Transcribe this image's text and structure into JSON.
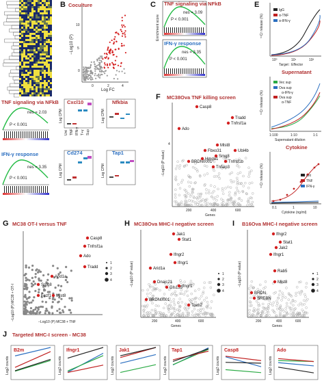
{
  "figure": {
    "panels": {
      "B": {
        "letter": "B",
        "title": "Coculture",
        "ylabel": "−Log10 (P)",
        "xlabel": "Log FC",
        "yticks": [
          "0",
          "5",
          "10"
        ],
        "xticks": [
          "0",
          "2",
          "4"
        ]
      },
      "C": {
        "letter": "C",
        "gsea1_title": "TNF signaling via NFkB",
        "gsea1_nes": "nes = 3.09",
        "gsea1_p": "P < 0.001",
        "gsea2_title": "IFN-γ response",
        "gsea2_nes": "nes = 3.35",
        "gsea2_p": "P < 0.001",
        "ylabel": "Enrichment score"
      },
      "E": {
        "letter": "E",
        "legend": [
          "IgG",
          "α-TNF",
          "α-IFN-γ"
        ],
        "xlabel": "Target : Effector",
        "ylabel": "⁵¹Cr release (%)",
        "xticks": [
          "10⁰",
          "10¹",
          "10²"
        ],
        "yticks": [
          "0",
          "25",
          "50",
          "75",
          "100"
        ]
      },
      "supernatant": {
        "title": "Supernatant",
        "legend": [
          "Vec sup",
          "Ova sup",
          "α-IFN-γ",
          "Ova sup",
          "α-TNF"
        ],
        "xlabel": "Supernatant dilution",
        "ylabel": "⁵¹Cr release (%)",
        "xticks": [
          "1:100",
          "1:10",
          "1:1"
        ],
        "yticks": [
          "0",
          "25",
          "50",
          "75"
        ]
      },
      "cytokine": {
        "title": "Cytokine",
        "legend": [
          "unt",
          "TNF",
          "IFN-γ"
        ],
        "xlabel": "Cytokine (ng/ml)",
        "ylabel": "⁵¹Cr release (%)",
        "xticks": [
          "0.1",
          "1",
          "10"
        ],
        "yticks": [
          "0",
          "25",
          "50",
          "75",
          "100"
        ]
      },
      "A_left": {
        "gsea1_title": "TNF signaling via NFkB",
        "gsea1_nes": "nes = 2.03",
        "gsea1_p": "P < 0.001",
        "gsea2_title": "IFN-γ response",
        "gsea2_nes": "nes = 3.35",
        "gsea2_p": "P < 0.001"
      },
      "D": {
        "genes": [
          "Cxcl10",
          "Nfkbia",
          "Cd274",
          "Tap1"
        ],
        "ylabel": "Log CPM",
        "cats": [
          "Unt",
          "TNF",
          "IFN-γ",
          "T+γ",
          "Sup"
        ]
      },
      "F": {
        "letter": "F",
        "title": "MC38Ova TNF killing screen",
        "ylabel": "−Log10 (P value)",
        "xlabel": "Genes",
        "xticks": [
          "200",
          "400",
          "600"
        ],
        "ytick": "4",
        "labels": [
          "Casp8",
          "Tradd",
          "Tnfrsf1a",
          "Ado",
          "Mlst8",
          "Fbxo31",
          "Ubl4b",
          "Smg8",
          "Hmga1",
          "Tnfrsf1b",
          "BRDN0001",
          "Tnfaip3"
        ]
      },
      "G": {
        "letter": "G",
        "title": "MC38 OT-I versus TNF",
        "ylabel": "−Log10 (P) MC38 + OT-I",
        "xlabel": "−Log10 (P) MC38 + TNF",
        "legend": [
          "1",
          "2",
          "3",
          "4"
        ],
        "labels": [
          "Casp8",
          "Tnfrsf1a",
          "Ado",
          "Tradd",
          "Arid1a",
          "Smg8",
          "Fezf1",
          "Mlst8"
        ]
      },
      "H": {
        "letter": "H",
        "title": "MC38Ova MHC-I negative screen",
        "ylabel": "−Log10 (P value)",
        "xlabel": "Genes",
        "xticks": [
          "200",
          "400",
          "600"
        ],
        "legend": [
          "1",
          "2",
          "3",
          "4"
        ],
        "labels": [
          "Jak1",
          "Stat1",
          "Ifngr2",
          "Arid1a",
          "Ifngr1",
          "Dnajc21",
          "Gls135",
          "Ifngr1",
          "BRDN0001",
          "Tceb2"
        ]
      },
      "I": {
        "letter": "I",
        "title": "B16Ova MHC-I negative screen",
        "ylabel": "−Log10 (P value)",
        "xlabel": "Genes",
        "xticks": [
          "200",
          "400",
          "600"
        ],
        "legend": [
          "1",
          "2",
          "3",
          "4"
        ],
        "labels": [
          "Ifngr2",
          "Stat1",
          "Jak2",
          "Ifngr1",
          "Rab5",
          "Mlst8",
          "BRDN",
          "SREBN"
        ]
      },
      "J": {
        "letter": "J",
        "title": "Targeted MHC-I screen - MC38",
        "ylabel": "Log2 counts",
        "genes": [
          "B2m",
          "Ifngr1",
          "Jak1",
          "Tap1",
          "Casp8",
          "Ado"
        ]
      }
    }
  }
}
